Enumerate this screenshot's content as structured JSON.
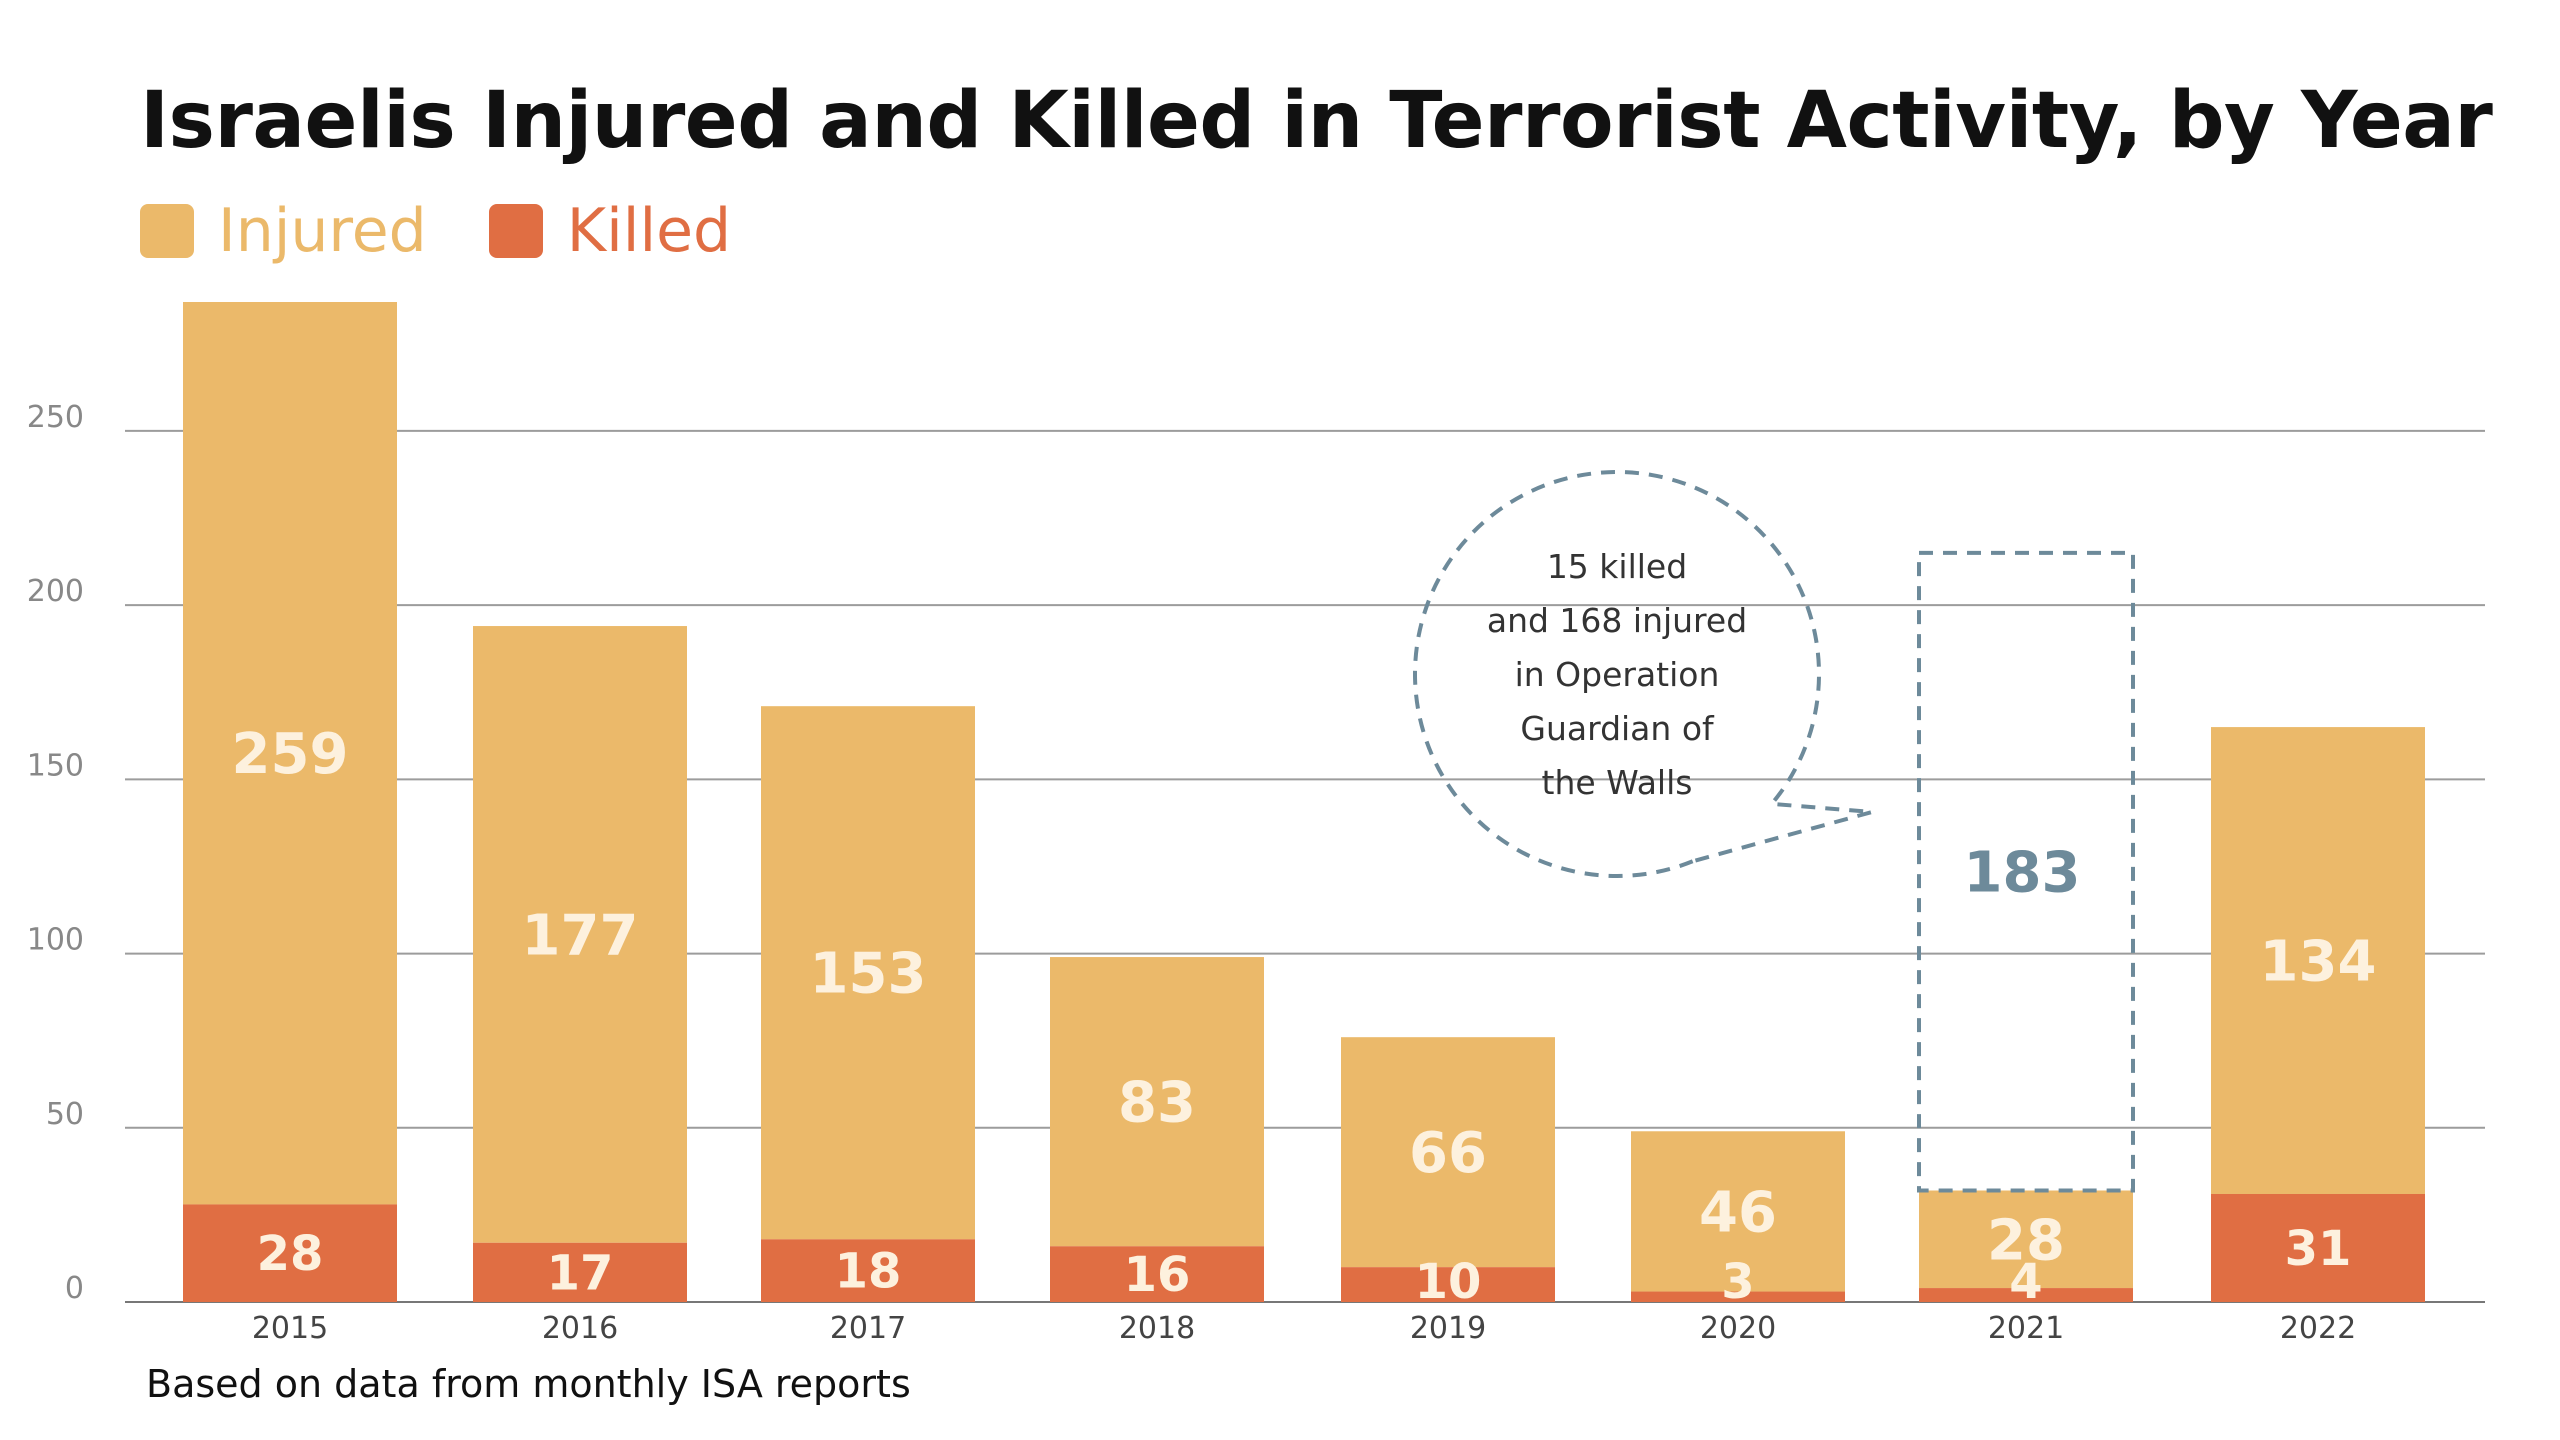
{
  "title": "Israelis Injured and Killed in Terrorist Activity, by Year",
  "source": "Based on data from monthly ISA reports",
  "colors": {
    "injured": "#EBB96A",
    "killed": "#E06E43",
    "grid": "#9C9C9C",
    "annotation": "#6D8A9A",
    "axis_text": "#888888",
    "year_text": "#444444",
    "label_on_bar": "#FDF1DE"
  },
  "chart_data": {
    "type": "bar",
    "stacked": true,
    "title": "Israelis Injured and Killed in Terrorist Activity, by Year",
    "categories": [
      "2015",
      "2016",
      "2017",
      "2018",
      "2019",
      "2020",
      "2021",
      "2022"
    ],
    "series": [
      {
        "name": "Killed",
        "values": [
          28,
          17,
          18,
          16,
          10,
          3,
          4,
          31
        ]
      },
      {
        "name": "Injured",
        "values": [
          259,
          177,
          153,
          83,
          66,
          46,
          28,
          134
        ]
      }
    ],
    "yticks": [
      "0",
      "50",
      "100",
      "150",
      "200",
      "250"
    ],
    "ylim": [
      0,
      287
    ],
    "grid": true,
    "legend": {
      "position": "top-left",
      "items": [
        "Injured",
        "Killed"
      ]
    },
    "annotation": {
      "category": "2021",
      "extra_total_label": "183",
      "extra_total_value": 183,
      "callout_lines": [
        "15 killed",
        "and 168 injured",
        "in Operation",
        "Guardian of",
        "the Walls"
      ]
    }
  }
}
